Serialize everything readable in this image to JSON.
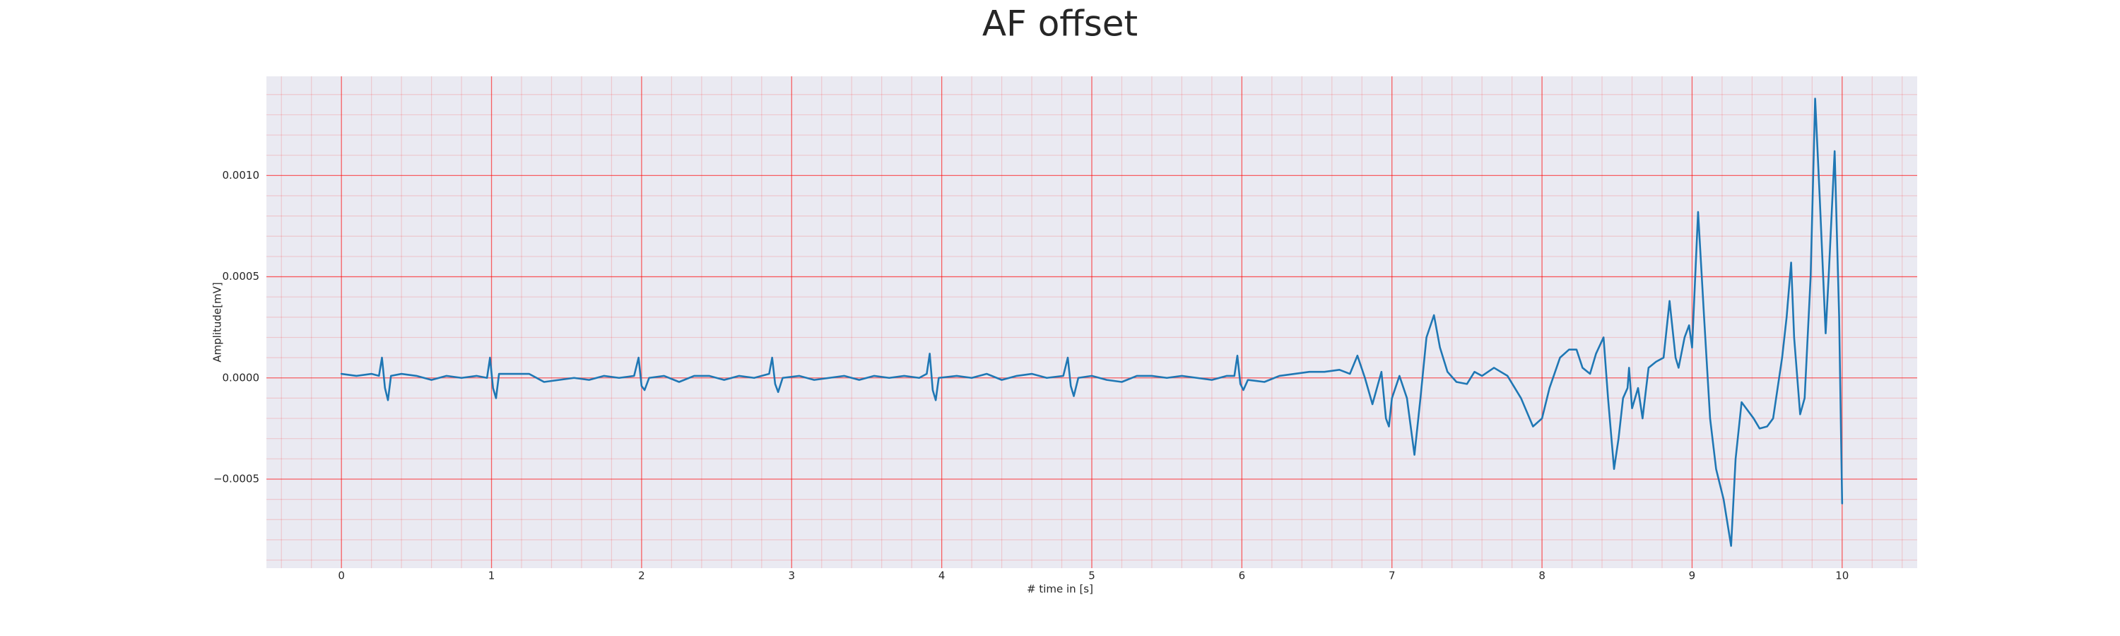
{
  "chart_data": {
    "type": "line",
    "title": "AF offset",
    "xlabel": "# time in [s]",
    "ylabel": "Amplitude[mV]",
    "color": "#1f77b4",
    "background": "#eaeaf2",
    "grid": true,
    "grid_color": "#ff0000",
    "minor_grid": true,
    "minor_divisions": 5,
    "xlim": [
      -0.5,
      10.5
    ],
    "ylim": [
      -0.00094,
      0.00149
    ],
    "xticks": [
      0,
      1,
      2,
      3,
      4,
      5,
      6,
      7,
      8,
      9,
      10
    ],
    "yticks": [
      {
        "value": -0.0005,
        "label": "−0.0005"
      },
      {
        "value": 0,
        "label": "0.0000"
      },
      {
        "value": 0.0005,
        "label": "0.0005"
      },
      {
        "value": 0.001,
        "label": "0.0010"
      }
    ],
    "x": [
      0,
      0.1,
      0.2,
      0.25,
      0.27,
      0.29,
      0.31,
      0.33,
      0.4,
      0.5,
      0.6,
      0.7,
      0.8,
      0.9,
      0.97,
      0.99,
      1.01,
      1.03,
      1.05,
      1.15,
      1.25,
      1.35,
      1.45,
      1.55,
      1.65,
      1.75,
      1.85,
      1.95,
      1.98,
      2.0,
      2.02,
      2.05,
      2.15,
      2.25,
      2.35,
      2.45,
      2.55,
      2.65,
      2.75,
      2.85,
      2.87,
      2.89,
      2.91,
      2.94,
      3.05,
      3.15,
      3.25,
      3.35,
      3.45,
      3.55,
      3.65,
      3.75,
      3.85,
      3.9,
      3.92,
      3.94,
      3.96,
      3.98,
      4.1,
      4.2,
      4.3,
      4.4,
      4.5,
      4.6,
      4.7,
      4.81,
      4.84,
      4.86,
      4.88,
      4.91,
      5.0,
      5.1,
      5.2,
      5.3,
      5.4,
      5.5,
      5.6,
      5.7,
      5.8,
      5.9,
      5.95,
      5.97,
      5.99,
      6.01,
      6.04,
      6.15,
      6.25,
      6.35,
      6.45,
      6.55,
      6.65,
      6.72,
      6.77,
      6.82,
      6.87,
      6.93,
      6.96,
      6.98,
      7.0,
      7.05,
      7.1,
      7.15,
      7.19,
      7.23,
      7.28,
      7.32,
      7.37,
      7.43,
      7.5,
      7.55,
      7.6,
      7.68,
      7.77,
      7.86,
      7.94,
      8.0,
      8.05,
      8.12,
      8.18,
      8.23,
      8.27,
      8.32,
      8.36,
      8.41,
      8.44,
      8.48,
      8.51,
      8.54,
      8.57,
      8.58,
      8.6,
      8.64,
      8.67,
      8.71,
      8.76,
      8.81,
      8.85,
      8.89,
      8.91,
      8.95,
      8.98,
      9.0,
      9.04,
      9.08,
      9.12,
      9.16,
      9.21,
      9.26,
      9.29,
      9.33,
      9.36,
      9.41,
      9.45,
      9.5,
      9.54,
      9.6,
      9.63,
      9.66,
      9.68,
      9.72,
      9.75,
      9.79,
      9.82,
      9.85,
      9.89,
      9.91,
      9.95,
      9.98,
      10.0
    ],
    "values": [
      2e-05,
      1e-05,
      2e-05,
      1e-05,
      0.0001,
      -5e-05,
      -0.00011,
      1e-05,
      2e-05,
      1e-05,
      -1e-05,
      1e-05,
      0,
      1e-05,
      0,
      0.0001,
      -5e-05,
      -0.0001,
      2e-05,
      2e-05,
      2e-05,
      -2e-05,
      -1e-05,
      0,
      -1e-05,
      1e-05,
      0,
      1e-05,
      0.0001,
      -4e-05,
      -6e-05,
      0,
      1e-05,
      -2e-05,
      1e-05,
      1e-05,
      -1e-05,
      1e-05,
      0,
      2e-05,
      0.0001,
      -3e-05,
      -7e-05,
      0,
      1e-05,
      -1e-05,
      0,
      1e-05,
      -1e-05,
      1e-05,
      0,
      1e-05,
      0,
      2e-05,
      0.00012,
      -6e-05,
      -0.00011,
      0,
      1e-05,
      0,
      2e-05,
      -1e-05,
      1e-05,
      2e-05,
      0,
      1e-05,
      0.0001,
      -4e-05,
      -9e-05,
      0,
      1e-05,
      -1e-05,
      -2e-05,
      1e-05,
      1e-05,
      0,
      1e-05,
      0,
      -1e-05,
      1e-05,
      1e-05,
      0.00011,
      -3e-05,
      -6e-05,
      -1e-05,
      -2e-05,
      1e-05,
      2e-05,
      3e-05,
      3e-05,
      4e-05,
      2e-05,
      0.00011,
      0,
      -0.00013,
      3e-05,
      -0.0002,
      -0.00024,
      -0.0001,
      1e-05,
      -0.0001,
      -0.00038,
      -0.0001,
      0.0002,
      0.00031,
      0.00015,
      3e-05,
      -2e-05,
      -3e-05,
      3e-05,
      1e-05,
      5e-05,
      1e-05,
      -0.0001,
      -0.00024,
      -0.0002,
      -5e-05,
      0.0001,
      0.00014,
      0.00014,
      5e-05,
      2e-05,
      0.00012,
      0.0002,
      -0.0001,
      -0.00045,
      -0.0003,
      -0.0001,
      -5e-05,
      5e-05,
      -0.00015,
      -5e-05,
      -0.0002,
      5e-05,
      8e-05,
      0.0001,
      0.00038,
      0.0001,
      5e-05,
      0.0002,
      0.00026,
      0.00015,
      0.00082,
      0.0003,
      -0.0002,
      -0.00045,
      -0.0006,
      -0.00083,
      -0.0004,
      -0.00012,
      -0.00015,
      -0.0002,
      -0.00025,
      -0.00024,
      -0.0002,
      0.0001,
      0.0003,
      0.00057,
      0.0002,
      -0.00018,
      -0.0001,
      0.0005,
      0.00138,
      0.0009,
      0.00022,
      0.0005,
      0.00112,
      0.0003,
      -0.00062
    ]
  }
}
